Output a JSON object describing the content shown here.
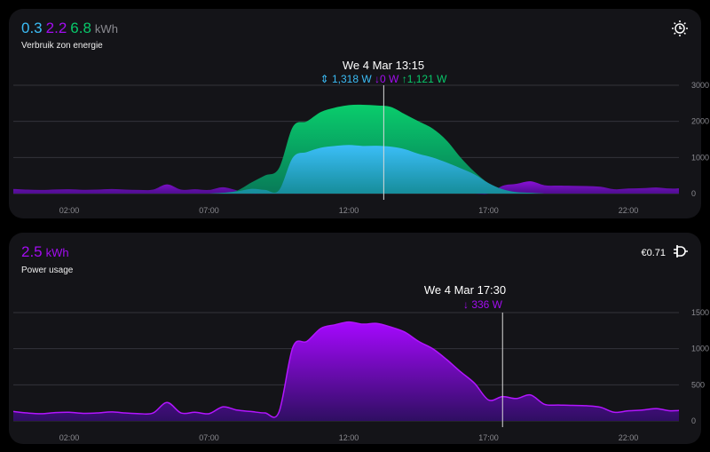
{
  "colors": {
    "self_use": "#3bbcf5",
    "grid": "#a20cf0",
    "export": "#08c86a",
    "unit": "#8a8a90"
  },
  "solar_card": {
    "values": [
      "0.3",
      "2.2",
      "6.8"
    ],
    "unit": "kWh",
    "subtitle": "Verbruik zon energie",
    "icon": "solar-clock-icon",
    "tooltip": {
      "title": "We 4 Mar 13:15",
      "self_use": "1,318 W",
      "grid": "0 W",
      "export": "1,121 W",
      "time_hours": 13.25
    }
  },
  "usage_card": {
    "value": "2.5",
    "unit": "kWh",
    "subtitle": "Power usage",
    "cost": "€0.71",
    "icon": "power-plug-icon",
    "tooltip": {
      "title": "We 4 Mar 17:30",
      "grid": "336 W",
      "time_hours": 17.5
    }
  },
  "chart_data": [
    {
      "type": "area",
      "title": "",
      "x_ticks": [
        "02:00",
        "07:00",
        "12:00",
        "17:00",
        "22:00"
      ],
      "y_ticks": [
        "0",
        "1000",
        "2000",
        "3000"
      ],
      "ylim": [
        0,
        3000
      ],
      "grid": true,
      "x": [
        "00:00",
        "00:30",
        "01:00",
        "01:30",
        "02:00",
        "02:30",
        "03:00",
        "03:30",
        "04:00",
        "04:30",
        "05:00",
        "05:30",
        "06:00",
        "06:30",
        "07:00",
        "07:30",
        "08:00",
        "08:30",
        "09:00",
        "09:30",
        "10:00",
        "10:30",
        "11:00",
        "11:30",
        "12:00",
        "12:30",
        "13:00",
        "13:30",
        "14:00",
        "14:30",
        "15:00",
        "15:30",
        "16:00",
        "16:30",
        "17:00",
        "17:30",
        "18:00",
        "18:30",
        "19:00",
        "19:30",
        "20:00",
        "20:30",
        "21:00",
        "21:30",
        "22:00",
        "22:30",
        "23:00",
        "23:30",
        "24:00"
      ],
      "series": [
        {
          "key": "grid",
          "values": [
            130,
            110,
            100,
            115,
            120,
            105,
            110,
            125,
            110,
            100,
            110,
            255,
            110,
            120,
            100,
            175,
            90,
            0,
            10,
            30,
            0,
            0,
            0,
            0,
            0,
            0,
            0,
            0,
            0,
            0,
            0,
            0,
            0,
            0,
            0,
            216,
            270,
            340,
            230,
            220,
            215,
            210,
            190,
            120,
            140,
            150,
            170,
            140,
            150
          ]
        },
        {
          "key": "production",
          "values": [
            0,
            0,
            0,
            0,
            0,
            0,
            0,
            0,
            0,
            0,
            0,
            0,
            0,
            0,
            0,
            20,
            80,
            300,
            500,
            700,
            1850,
            2000,
            2260,
            2380,
            2450,
            2460,
            2440,
            2400,
            2200,
            2000,
            1800,
            1470,
            1000,
            600,
            290,
            120,
            40,
            20,
            0,
            0,
            0,
            0,
            0,
            0,
            0,
            0,
            0,
            0,
            0
          ]
        },
        {
          "key": "self_use",
          "values": [
            0,
            0,
            0,
            0,
            0,
            0,
            0,
            0,
            0,
            0,
            0,
            0,
            0,
            0,
            0,
            20,
            60,
            130,
            100,
            90,
            1000,
            1150,
            1270,
            1320,
            1345,
            1320,
            1325,
            1300,
            1230,
            1100,
            1000,
            860,
            700,
            530,
            290,
            120,
            40,
            20,
            0,
            0,
            0,
            0,
            0,
            0,
            0,
            0,
            0,
            0,
            0
          ]
        }
      ]
    },
    {
      "type": "area",
      "title": "",
      "x_ticks": [
        "02:00",
        "07:00",
        "12:00",
        "17:00",
        "22:00"
      ],
      "y_ticks": [
        "0",
        "500",
        "1000",
        "1500"
      ],
      "ylim": [
        0,
        1500
      ],
      "grid": true,
      "x": [
        "00:00",
        "00:30",
        "01:00",
        "01:30",
        "02:00",
        "02:30",
        "03:00",
        "03:30",
        "04:00",
        "04:30",
        "05:00",
        "05:30",
        "06:00",
        "06:30",
        "07:00",
        "07:30",
        "08:00",
        "08:30",
        "09:00",
        "09:30",
        "10:00",
        "10:30",
        "11:00",
        "11:30",
        "12:00",
        "12:30",
        "13:00",
        "13:30",
        "14:00",
        "14:30",
        "15:00",
        "15:30",
        "16:00",
        "16:30",
        "17:00",
        "17:30",
        "18:00",
        "18:30",
        "19:00",
        "19:30",
        "20:00",
        "20:30",
        "21:00",
        "21:30",
        "22:00",
        "22:30",
        "23:00",
        "23:30",
        "24:00"
      ],
      "series": [
        {
          "key": "usage",
          "values": [
            130,
            110,
            100,
            115,
            120,
            105,
            110,
            125,
            110,
            100,
            110,
            255,
            110,
            120,
            100,
            195,
            150,
            130,
            110,
            120,
            1020,
            1100,
            1280,
            1330,
            1370,
            1340,
            1350,
            1300,
            1230,
            1100,
            1000,
            850,
            680,
            520,
            290,
            336,
            310,
            360,
            230,
            220,
            215,
            210,
            190,
            120,
            140,
            150,
            170,
            140,
            150
          ]
        }
      ]
    }
  ]
}
